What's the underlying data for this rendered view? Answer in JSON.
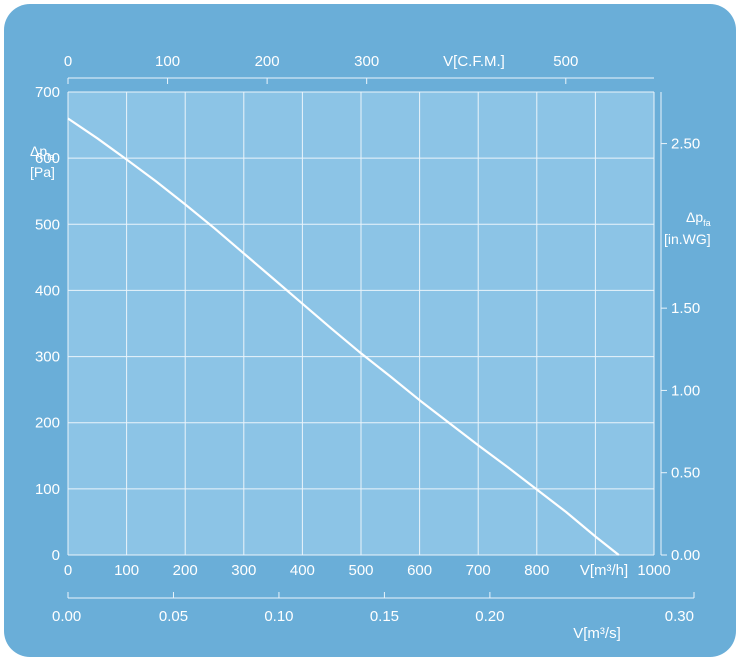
{
  "colors": {
    "panel": "#6aaed8",
    "plot_background": "#8cc4e6",
    "grid": "#eaf4fb",
    "curve": "#ffffff",
    "text": "#ffffff"
  },
  "chart_data": {
    "type": "line",
    "title": "",
    "grid": true,
    "x_bottom": {
      "label": "V[m³/h]",
      "range": [
        0,
        1000
      ],
      "ticks": [
        "0",
        "100",
        "200",
        "300",
        "400",
        "500",
        "600",
        "700",
        "800",
        "1000"
      ]
    },
    "x_top": {
      "label": "V[C.F.M.]",
      "range": [
        0,
        588.6
      ],
      "ticks": [
        "0",
        "100",
        "200",
        "300",
        "500"
      ]
    },
    "x_second_bottom": {
      "label": "V[m³/s]",
      "range": [
        0,
        0.2778
      ],
      "ticks": [
        "0.00",
        "0.05",
        "0.10",
        "0.15",
        "0.20",
        "0.30"
      ]
    },
    "y_left": {
      "label_symbol": "Δp",
      "label_sub": "fa",
      "label_unit": "[Pa]",
      "range": [
        0,
        700
      ],
      "ticks": [
        "0",
        "100",
        "200",
        "300",
        "400",
        "500",
        "600",
        "700"
      ]
    },
    "y_right": {
      "label_symbol": "Δp",
      "label_sub": "fa",
      "label_unit": "[in.WG]",
      "range": [
        0,
        2.8134
      ],
      "ticks": [
        "0.00",
        "0.50",
        "1.00",
        "1.50",
        "2.50"
      ]
    },
    "series": [
      {
        "x": [
          0,
          50,
          100,
          150,
          200,
          250,
          300,
          350,
          400,
          450,
          500,
          550,
          600,
          650,
          700,
          750,
          800,
          850,
          900,
          940
        ],
        "y": [
          660,
          630,
          598,
          565,
          530,
          494,
          456,
          418,
          380,
          342,
          305,
          270,
          234,
          200,
          166,
          133,
          99,
          65,
          28,
          0
        ]
      }
    ]
  }
}
